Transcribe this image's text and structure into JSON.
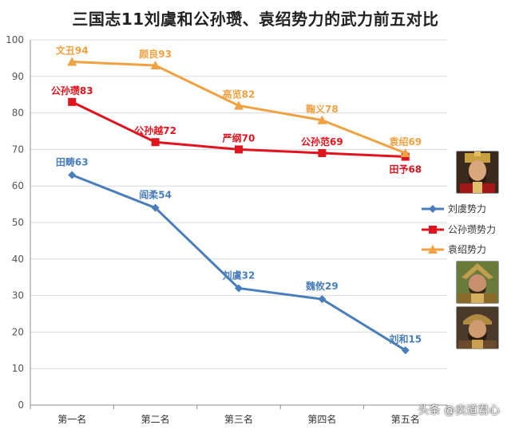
{
  "title": "三国志11刘虞和公孙瓒、袁绍势力的武力前五对比",
  "watermark": "头条 @卖道君心",
  "colors": {
    "liuyu": "#4a7ebb",
    "gongsun": "#e0141e",
    "yuanshao": "#f0a142",
    "grid": "#d9d9d9",
    "axis": "#8c8c8c",
    "tick_text": "#555555"
  },
  "portraits": [
    {
      "name": "portrait-yuanshao",
      "icon": "general-portrait-icon"
    },
    {
      "name": "portrait-gongsun",
      "icon": "general-portrait-icon"
    },
    {
      "name": "portrait-liuyu",
      "icon": "general-portrait-icon"
    }
  ],
  "chart_data": {
    "type": "line",
    "title": "三国志11刘虞和公孙瓒、袁绍势力的武力前五对比",
    "categories": [
      "第一名",
      "第二名",
      "第三名",
      "第四名",
      "第五名"
    ],
    "ylim": [
      0,
      100
    ],
    "yticks": [
      0,
      10,
      20,
      30,
      40,
      50,
      60,
      70,
      80,
      90,
      100
    ],
    "grid": "horizontal",
    "legend_position": "right",
    "series": [
      {
        "name": "刘虞势力",
        "color": "#4a7ebb",
        "marker": "diamond",
        "values": [
          63,
          54,
          32,
          29,
          15
        ],
        "labels": [
          "田畴63",
          "阎柔54",
          "刘虞32",
          "魏攸29",
          "刘和15"
        ]
      },
      {
        "name": "公孙瓒势力",
        "color": "#e0141e",
        "marker": "square",
        "values": [
          83,
          72,
          70,
          69,
          68
        ],
        "labels": [
          "公孙瓒83",
          "公孙越72",
          "严纲70",
          "公孙范69",
          "田予68"
        ]
      },
      {
        "name": "袁绍势力",
        "color": "#f0a142",
        "marker": "triangle",
        "values": [
          94,
          93,
          82,
          78,
          69
        ],
        "labels": [
          "文丑94",
          "颜良93",
          "高览82",
          "鞠义78",
          "袁绍69"
        ]
      }
    ]
  }
}
